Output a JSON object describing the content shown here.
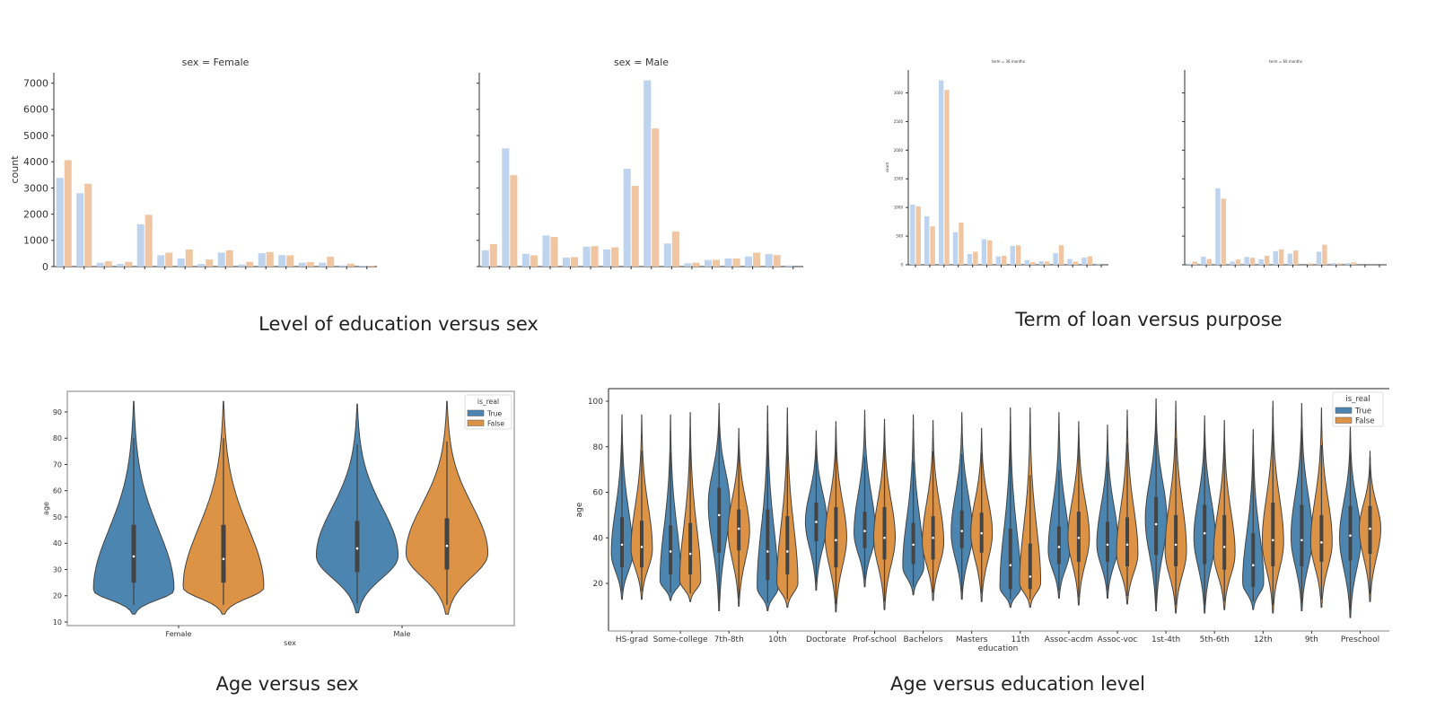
{
  "captions": {
    "top_left": "Level of education versus sex",
    "top_right": "Term of loan versus purpose",
    "bottom_left": "Age versus sex",
    "bottom_right": "Age versus education level"
  },
  "colors": {
    "bar_blue": "#bdd3ee",
    "bar_orange": "#f0c5a2",
    "violin_true": "#4c86b0",
    "violin_false": "#dd9346"
  },
  "chart_data": [
    {
      "type": "bar",
      "title": "sex = Female",
      "ylabel": "count",
      "ylim": [
        0,
        7400
      ],
      "yticks": [
        0,
        1000,
        2000,
        3000,
        4000,
        5000,
        6000,
        7000
      ],
      "series": [
        {
          "values": [
            3385,
            2800,
            147,
            100,
            1614,
            430,
            305,
            100,
            530,
            80,
            508,
            440,
            147,
            147,
            45,
            34
          ]
        },
        {
          "values": [
            4063,
            3160,
            200,
            180,
            1975,
            530,
            655,
            270,
            620,
            180,
            553,
            430,
            170,
            372,
            113,
            34
          ]
        }
      ]
    },
    {
      "type": "bar",
      "title": "sex = Male",
      "ylim": [
        0,
        7400
      ],
      "series": [
        {
          "values": [
            620,
            4510,
            485,
            1185,
            340,
            756,
            655,
            3735,
            7110,
            880,
            124,
            248,
            305,
            384,
            474,
            45
          ]
        },
        {
          "values": [
            858,
            3490,
            430,
            1130,
            360,
            780,
            735,
            3080,
            5270,
            1340,
            147,
            260,
            305,
            530,
            440,
            0
          ]
        }
      ]
    },
    {
      "type": "bar",
      "title": "term = 36 months",
      "ylabel": "count",
      "ylim": [
        0,
        3400
      ],
      "yticks": [
        0,
        500,
        1000,
        1500,
        2000,
        2500,
        3000
      ],
      "series": [
        {
          "values": [
            1049,
            846,
            3218,
            568,
            188,
            446,
            147,
            330,
            81,
            61,
            203,
            101,
            127,
            20
          ]
        },
        {
          "values": [
            1019,
            669,
            3051,
            735,
            228,
            426,
            157,
            340,
            46,
            56,
            340,
            56,
            147,
            0
          ]
        }
      ]
    },
    {
      "type": "bar",
      "title": "term = 60 months",
      "ylim": [
        0,
        3400
      ],
      "series": [
        {
          "values": [
            20,
            142,
            1335,
            56,
            137,
            96,
            238,
            193,
            0,
            228,
            30,
            30,
            0,
            0
          ]
        },
        {
          "values": [
            56,
            101,
            1152,
            91,
            122,
            157,
            269,
            249,
            25,
            350,
            25,
            41,
            0,
            0
          ]
        }
      ]
    },
    {
      "type": "violin",
      "xlabel": "sex",
      "ylabel": "age",
      "ylim": [
        8,
        97
      ],
      "yticks": [
        10,
        20,
        30,
        40,
        50,
        60,
        70,
        80,
        90
      ],
      "categories": [
        "Female",
        "Male"
      ],
      "legend": {
        "title": "is_real",
        "entries": [
          "True",
          "False"
        ],
        "placement": "top-right"
      },
      "violins": [
        [
          {
            "min": 13,
            "max": 94,
            "q1": 25,
            "median": 35,
            "q3": 47,
            "mode": 22
          },
          {
            "min": 13,
            "max": 94,
            "q1": 25,
            "median": 34,
            "q3": 47,
            "mode": 23
          }
        ],
        [
          {
            "min": 13.5,
            "max": 93,
            "q1": 29,
            "median": 38,
            "q3": 48.5,
            "mode": 35
          },
          {
            "min": 13,
            "max": 94,
            "q1": 30,
            "median": 39,
            "q3": 49.5,
            "mode": 36
          }
        ]
      ]
    },
    {
      "type": "violin",
      "xlabel": "education",
      "ylabel": "age",
      "ylim": [
        0,
        106
      ],
      "yticks": [
        20,
        40,
        60,
        80,
        100
      ],
      "categories": [
        "HS-grad",
        "Some-college",
        "7th-8th",
        "10th",
        "Doctorate",
        "Prof-school",
        "Bachelors",
        "Masters",
        "11th",
        "Assoc-acdm",
        "Assoc-voc",
        "1st-4th",
        "5th-6th",
        "12th",
        "9th",
        "Preschool"
      ],
      "legend": {
        "title": "is_real",
        "entries": [
          "True",
          "False"
        ],
        "placement": "top-right"
      },
      "violins": [
        [
          {
            "min": 13,
            "max": 94,
            "q1": 27,
            "median": 37,
            "q3": 49,
            "mode": 33
          },
          {
            "min": 13,
            "max": 94,
            "q1": 27,
            "median": 36,
            "q3": 47.5,
            "mode": 35
          }
        ],
        [
          {
            "min": 12.5,
            "max": 94,
            "q1": 24,
            "median": 34,
            "q3": 45.5,
            "mode": 21
          },
          {
            "min": 12,
            "max": 95,
            "q1": 24,
            "median": 33,
            "q3": 46.5,
            "mode": 21
          }
        ],
        [
          {
            "min": 8,
            "max": 99,
            "q1": 33.5,
            "median": 50,
            "q3": 62,
            "mode": 55
          },
          {
            "min": 10,
            "max": 88,
            "q1": 34.5,
            "median": 44,
            "q3": 52.5,
            "mode": 43
          }
        ],
        [
          {
            "min": 8,
            "max": 98,
            "q1": 21.5,
            "median": 34,
            "q3": 52.5,
            "mode": 18
          },
          {
            "min": 9.5,
            "max": 97,
            "q1": 24,
            "median": 34,
            "q3": 49.5,
            "mode": 20
          }
        ],
        [
          {
            "min": 17,
            "max": 87,
            "q1": 38.5,
            "median": 47,
            "q3": 55.5,
            "mode": 47
          },
          {
            "min": 7.5,
            "max": 91,
            "q1": 27,
            "median": 39,
            "q3": 53.5,
            "mode": 40
          }
        ],
        [
          {
            "min": 18.5,
            "max": 96,
            "q1": 35.5,
            "median": 43,
            "q3": 51.5,
            "mode": 42
          },
          {
            "min": 8.5,
            "max": 92,
            "q1": 30.5,
            "median": 40,
            "q3": 53.5,
            "mode": 40
          }
        ],
        [
          {
            "min": 15,
            "max": 94,
            "q1": 28.5,
            "median": 37,
            "q3": 46.5,
            "mode": 27
          },
          {
            "min": 12.5,
            "max": 91.5,
            "q1": 30.5,
            "median": 40,
            "q3": 49.5,
            "mode": 38
          }
        ],
        [
          {
            "min": 13,
            "max": 95,
            "q1": 35.5,
            "median": 43,
            "q3": 52,
            "mode": 42
          },
          {
            "min": 12,
            "max": 88,
            "q1": 33.5,
            "median": 42,
            "q3": 51,
            "mode": 42
          }
        ],
        [
          {
            "min": 9.5,
            "max": 97,
            "q1": 17.5,
            "median": 28,
            "q3": 44,
            "mode": 18
          },
          {
            "min": 9.5,
            "max": 97,
            "q1": 17.5,
            "median": 23,
            "q3": 37.5,
            "mode": 20
          }
        ],
        [
          {
            "min": 13.5,
            "max": 95,
            "q1": 28.5,
            "median": 36,
            "q3": 45,
            "mode": 34
          },
          {
            "min": 10.5,
            "max": 91,
            "q1": 29.5,
            "median": 40,
            "q3": 51.5,
            "mode": 40
          }
        ],
        [
          {
            "min": 13.5,
            "max": 89.5,
            "q1": 29.5,
            "median": 37,
            "q3": 47,
            "mode": 37
          },
          {
            "min": 11,
            "max": 96,
            "q1": 27.5,
            "median": 37,
            "q3": 49,
            "mode": 33
          }
        ],
        [
          {
            "min": 8,
            "max": 101,
            "q1": 32.5,
            "median": 46,
            "q3": 58,
            "mode": 48
          },
          {
            "min": 7,
            "max": 100,
            "q1": 27.5,
            "median": 37,
            "q3": 50,
            "mode": 34
          }
        ],
        [
          {
            "min": 7,
            "max": 93.5,
            "q1": 28.5,
            "median": 42,
            "q3": 54.5,
            "mode": 40
          },
          {
            "min": 8.5,
            "max": 91.5,
            "q1": 26,
            "median": 36,
            "q3": 50,
            "mode": 33
          }
        ],
        [
          {
            "min": 8.5,
            "max": 87.5,
            "q1": 18.5,
            "median": 28,
            "q3": 42,
            "mode": 20
          },
          {
            "min": 7,
            "max": 100,
            "q1": 27.5,
            "median": 39,
            "q3": 55.5,
            "mode": 38
          }
        ],
        [
          {
            "min": 8,
            "max": 99,
            "q1": 27.5,
            "median": 39,
            "q3": 54.5,
            "mode": 40
          },
          {
            "min": 9.5,
            "max": 97,
            "q1": 29.5,
            "median": 38,
            "q3": 50,
            "mode": 38
          }
        ],
        [
          {
            "min": 5,
            "max": 89,
            "q1": 30,
            "median": 41,
            "q3": 54,
            "mode": 40
          },
          {
            "min": 12,
            "max": 78,
            "q1": 33,
            "median": 44,
            "q3": 54,
            "mode": 44
          }
        ]
      ]
    }
  ]
}
